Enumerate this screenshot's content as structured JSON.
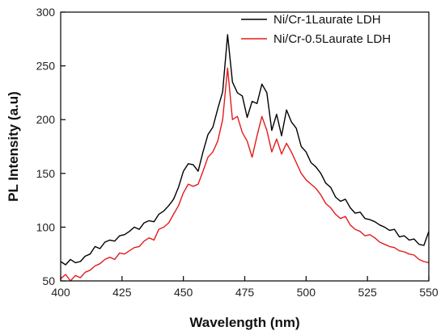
{
  "chart_data": {
    "type": "line",
    "xlabel": "Wavelength (nm)",
    "ylabel": "PL Intensity (a.u)",
    "xlim": [
      400,
      550
    ],
    "ylim": [
      50,
      300
    ],
    "xticks": [
      400,
      425,
      450,
      475,
      500,
      525,
      550
    ],
    "yticks": [
      50,
      100,
      150,
      200,
      250,
      300
    ],
    "grid": false,
    "legend_position": "top-right",
    "series": [
      {
        "name": "Ni/Cr-1Laurate LDH",
        "color": "#000000",
        "x": [
          400,
          402,
          404,
          406,
          408,
          410,
          412,
          414,
          416,
          418,
          420,
          422,
          424,
          426,
          428,
          430,
          432,
          434,
          436,
          438,
          440,
          442,
          444,
          446,
          448,
          450,
          452,
          454,
          456,
          458,
          460,
          462,
          464,
          466,
          468,
          470,
          472,
          474,
          476,
          478,
          480,
          482,
          484,
          486,
          488,
          490,
          492,
          494,
          496,
          498,
          500,
          502,
          504,
          506,
          508,
          510,
          512,
          514,
          516,
          518,
          520,
          522,
          524,
          526,
          528,
          530,
          532,
          534,
          536,
          538,
          540,
          542,
          544,
          546,
          548,
          550
        ],
        "values": [
          68,
          65,
          70,
          67,
          68,
          73,
          75,
          82,
          80,
          86,
          88,
          87,
          92,
          93,
          96,
          100,
          98,
          104,
          106,
          105,
          112,
          115,
          120,
          126,
          137,
          152,
          159,
          158,
          152,
          170,
          186,
          193,
          210,
          226,
          279,
          235,
          225,
          222,
          202,
          217,
          215,
          233,
          225,
          190,
          205,
          185,
          209,
          198,
          192,
          175,
          170,
          160,
          156,
          150,
          141,
          137,
          128,
          124,
          126,
          118,
          113,
          114,
          108,
          107,
          105,
          102,
          100,
          97,
          98,
          91,
          92,
          88,
          89,
          84,
          83,
          96
        ]
      },
      {
        "name": "Ni/Cr-0.5Laurate LDH",
        "color": "#e41a1c",
        "x": [
          400,
          402,
          404,
          406,
          408,
          410,
          412,
          414,
          416,
          418,
          420,
          422,
          424,
          426,
          428,
          430,
          432,
          434,
          436,
          438,
          440,
          442,
          444,
          446,
          448,
          450,
          452,
          454,
          456,
          458,
          460,
          462,
          464,
          466,
          468,
          470,
          472,
          474,
          476,
          478,
          480,
          482,
          484,
          486,
          488,
          490,
          492,
          494,
          496,
          498,
          500,
          502,
          504,
          506,
          508,
          510,
          512,
          514,
          516,
          518,
          520,
          522,
          524,
          526,
          528,
          530,
          532,
          534,
          536,
          538,
          540,
          542,
          544,
          546,
          548,
          550
        ],
        "values": [
          52,
          56,
          50,
          55,
          53,
          58,
          60,
          64,
          66,
          70,
          72,
          70,
          76,
          75,
          78,
          81,
          82,
          87,
          90,
          88,
          98,
          100,
          104,
          112,
          120,
          132,
          140,
          138,
          140,
          152,
          165,
          170,
          180,
          200,
          248,
          200,
          203,
          188,
          180,
          165,
          185,
          203,
          190,
          170,
          182,
          168,
          178,
          170,
          160,
          150,
          144,
          140,
          136,
          130,
          122,
          118,
          112,
          108,
          110,
          102,
          98,
          96,
          92,
          93,
          90,
          86,
          84,
          82,
          81,
          78,
          77,
          75,
          74,
          70,
          68,
          67
        ]
      }
    ]
  }
}
